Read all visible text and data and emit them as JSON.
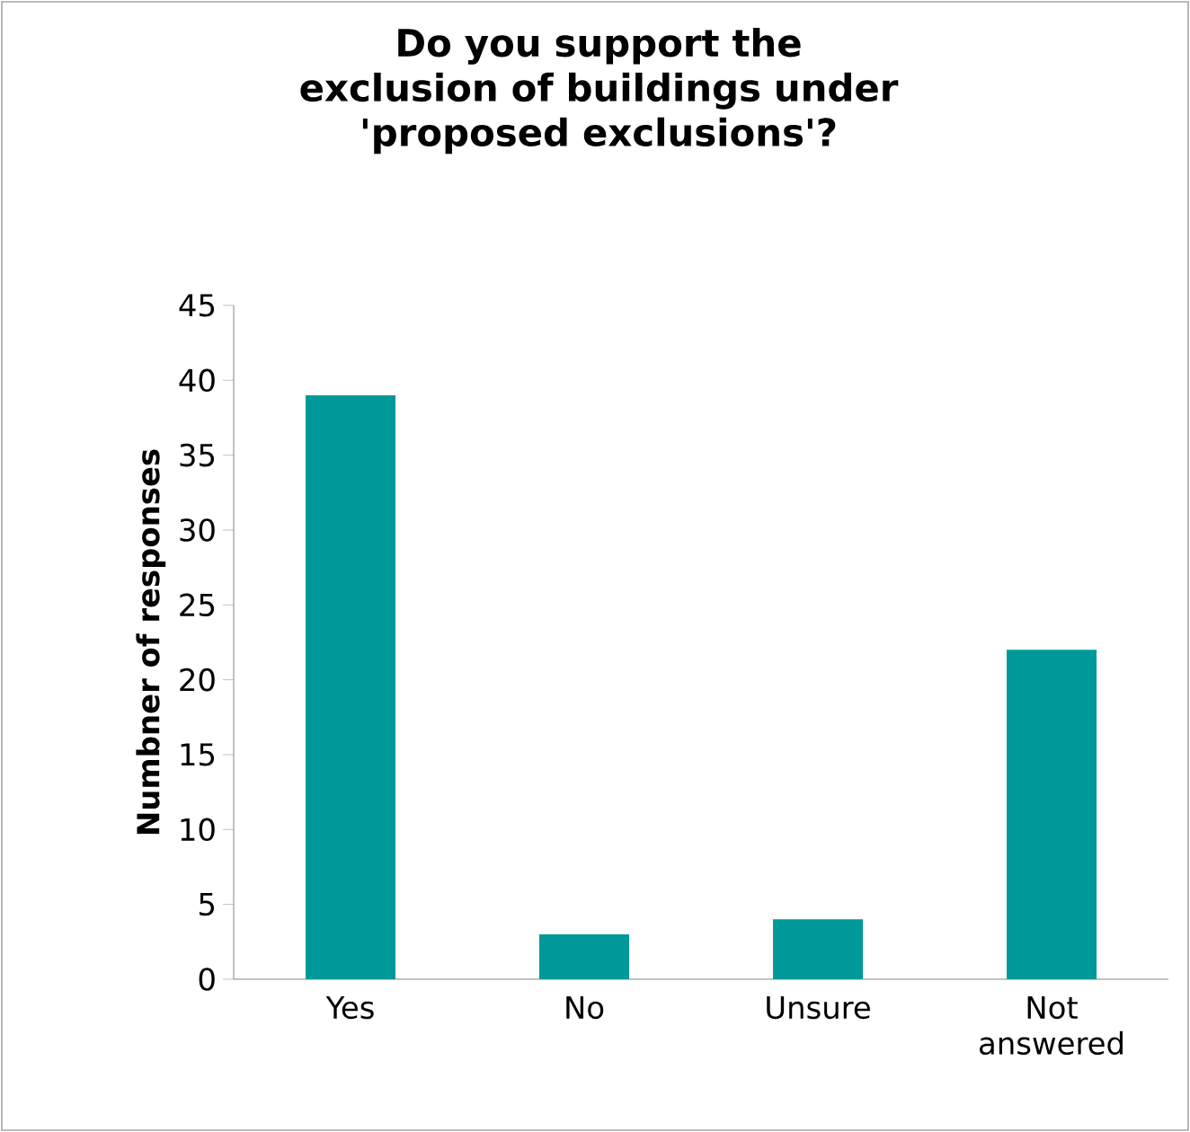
{
  "chart_data": {
    "type": "bar",
    "title": "Do you support the exclusion of buildings under 'proposed exclusions'?",
    "ylabel": "Numbner of responses",
    "categories": [
      "Yes",
      "No",
      "Unsure",
      "Not answered"
    ],
    "values": [
      39,
      3,
      4,
      22
    ],
    "color": "#009999",
    "ylim": [
      0,
      45
    ],
    "yticks": [
      0,
      5,
      10,
      15,
      20,
      25,
      30,
      35,
      40,
      45
    ]
  }
}
